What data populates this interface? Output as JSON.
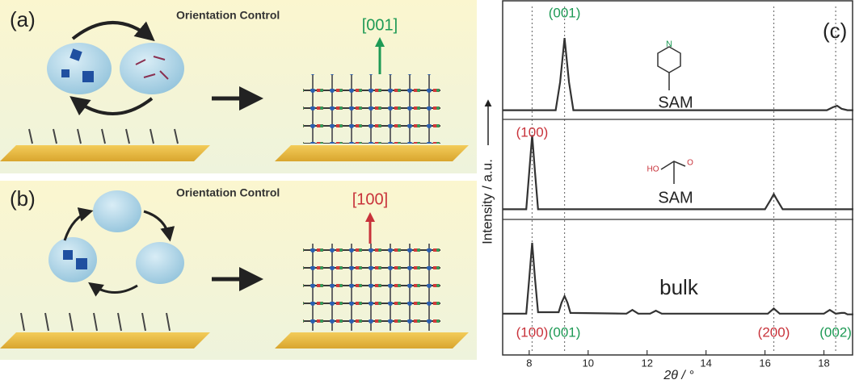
{
  "panel_a": {
    "label": "(a)",
    "title": "Orientation Control",
    "direction": "[001]"
  },
  "panel_b": {
    "label": "(b)",
    "title": "Orientation Control",
    "direction": "[100]"
  },
  "figure_c": {
    "label": "(c)",
    "ylabel": "Intensity / a.u.",
    "xlabel": "2θ / °",
    "peak_lines": [
      8.1,
      9.2,
      16.3,
      18.4
    ]
  },
  "chart_data": [
    {
      "type": "line",
      "label": "SAM",
      "color": "#333333",
      "x": [
        7.1,
        8.9,
        9.05,
        9.2,
        9.35,
        9.5,
        18.1,
        18.3,
        18.45,
        18.6,
        18.8,
        19.0
      ],
      "values": [
        0.02,
        0.02,
        0.4,
        1.0,
        0.4,
        0.02,
        0.02,
        0.06,
        0.08,
        0.04,
        0.02,
        0.02
      ],
      "xlim": [
        7.1,
        19.0
      ],
      "ylim": [
        -0.05,
        1.1
      ],
      "annotations": [
        {
          "text": "(001)",
          "x": 9.2,
          "color": "#1e9a55"
        }
      ]
    },
    {
      "type": "line",
      "label": "SAM",
      "color": "#333333",
      "x": [
        7.1,
        7.9,
        8.0,
        8.1,
        8.2,
        8.3,
        16.0,
        16.2,
        16.3,
        16.4,
        16.6,
        19.0
      ],
      "values": [
        0.02,
        0.02,
        0.5,
        1.0,
        0.5,
        0.02,
        0.02,
        0.15,
        0.22,
        0.15,
        0.02,
        0.02
      ],
      "xlim": [
        7.1,
        19.0
      ],
      "ylim": [
        -0.05,
        1.1
      ],
      "annotations": [
        {
          "text": "(100)",
          "x": 8.1,
          "color": "#c8323a"
        }
      ]
    },
    {
      "type": "line",
      "label": "bulk",
      "color": "#333333",
      "x": [
        7.1,
        7.9,
        8.0,
        8.1,
        8.2,
        8.3,
        9.0,
        9.1,
        9.2,
        9.3,
        9.4,
        11.3,
        11.5,
        11.7,
        12.1,
        12.3,
        12.5,
        16.1,
        16.3,
        16.5,
        18.0,
        18.2,
        18.4,
        18.6,
        18.7,
        18.8,
        19.0
      ],
      "values": [
        0.03,
        0.03,
        0.5,
        1.0,
        0.5,
        0.05,
        0.05,
        0.18,
        0.27,
        0.18,
        0.04,
        0.03,
        0.08,
        0.03,
        0.03,
        0.07,
        0.03,
        0.03,
        0.1,
        0.03,
        0.03,
        0.08,
        0.03,
        0.04,
        0.04,
        0.02,
        0.02
      ],
      "xlim": [
        7.1,
        19.0
      ],
      "ylim": [
        -0.05,
        1.1
      ],
      "xticks": [
        8,
        10,
        12,
        14,
        16,
        18
      ],
      "annotations": [
        {
          "text": "(100)",
          "x": 8.1,
          "color": "#c8323a"
        },
        {
          "text": "(001)",
          "x": 9.2,
          "color": "#1e9a55"
        },
        {
          "text": "(200)",
          "x": 16.3,
          "color": "#c8323a"
        },
        {
          "text": "(002)",
          "x": 18.4,
          "color": "#1e9a55"
        }
      ]
    }
  ]
}
